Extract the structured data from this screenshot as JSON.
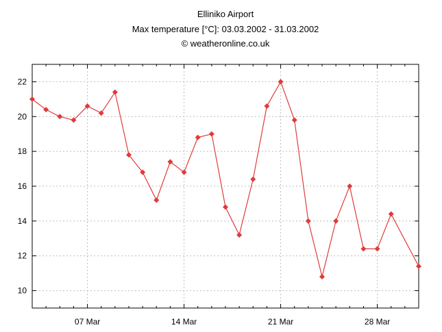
{
  "chart_data": {
    "type": "line",
    "title": "Elliniko Airport",
    "subtitle": "Max temperature [°C]: 03.03.2002 - 31.03.2002",
    "credit": "© weatheronline.co.uk",
    "xlabel": "",
    "ylabel": "",
    "ylim": [
      9,
      23
    ],
    "xlim": [
      3,
      31
    ],
    "grid": true,
    "y_ticks": [
      10,
      12,
      14,
      16,
      18,
      20,
      22
    ],
    "x_ticks": [
      {
        "day": 7,
        "label": "07 Mar"
      },
      {
        "day": 14,
        "label": "14 Mar"
      },
      {
        "day": 21,
        "label": "21 Mar"
      },
      {
        "day": 28,
        "label": "28 Mar"
      }
    ],
    "series": [
      {
        "name": "Max temperature",
        "color": "#e03a3a",
        "x": [
          3,
          4,
          5,
          6,
          7,
          8,
          9,
          10,
          11,
          12,
          13,
          14,
          15,
          16,
          17,
          18,
          19,
          20,
          21,
          22,
          23,
          24,
          25,
          26,
          27,
          28,
          29,
          31
        ],
        "values": [
          21.0,
          20.4,
          20.0,
          19.8,
          20.6,
          20.2,
          21.4,
          17.8,
          16.8,
          15.2,
          17.4,
          16.8,
          18.8,
          19.0,
          14.8,
          13.2,
          16.4,
          20.6,
          22.0,
          19.8,
          14.0,
          10.8,
          14.0,
          16.0,
          12.4,
          12.4,
          14.4,
          11.4
        ]
      }
    ]
  }
}
